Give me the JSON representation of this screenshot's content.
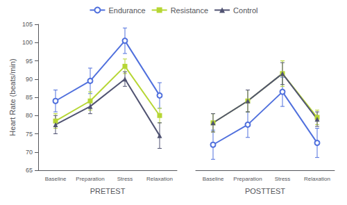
{
  "chart_data": [
    {
      "type": "line",
      "categories": [
        "Baseline",
        "Preparation",
        "Stress",
        "Relaxation"
      ],
      "xlabel": "PRETEST",
      "ylabel": "Heart Rate (beats/min)",
      "ylim": [
        65,
        105
      ],
      "yticks": [
        65,
        70,
        75,
        80,
        85,
        90,
        95,
        100,
        105
      ],
      "grid": false,
      "legend": "top",
      "series": [
        {
          "name": "Endurance",
          "marker": "circle",
          "values": [
            84,
            89.5,
            100.5,
            85.5
          ],
          "errors": [
            3,
            3.5,
            3.5,
            3.5
          ]
        },
        {
          "name": "Resistance",
          "marker": "square",
          "values": [
            78.5,
            84,
            93.5,
            80
          ],
          "errors": [
            2,
            2.5,
            2,
            2
          ]
        },
        {
          "name": "Control",
          "marker": "triangle",
          "values": [
            77.5,
            82.5,
            90,
            74.5
          ],
          "errors": [
            2.5,
            2,
            2,
            3.5
          ]
        }
      ]
    },
    {
      "type": "line",
      "categories": [
        "Baseline",
        "Preparation",
        "Stress",
        "Relaxation"
      ],
      "xlabel": "POSTTEST",
      "ylim": [
        65,
        105
      ],
      "yticks": [
        65,
        70,
        75,
        80,
        85,
        90,
        95,
        100,
        105
      ],
      "grid": false,
      "tick_labels": "x",
      "series": [
        {
          "name": "Endurance",
          "marker": "circle",
          "values": [
            72,
            77.5,
            86.5,
            72.5
          ],
          "errors": [
            4,
            3.5,
            4,
            4
          ]
        },
        {
          "name": "Resistance",
          "marker": "square",
          "values": [
            78,
            84,
            91.5,
            79.5
          ],
          "errors": [
            2.5,
            3,
            3.5,
            2
          ]
        },
        {
          "name": "Control",
          "marker": "triangle",
          "values": [
            78,
            84,
            91.5,
            79
          ],
          "errors": [
            2.5,
            3,
            3,
            2
          ]
        }
      ]
    }
  ]
}
